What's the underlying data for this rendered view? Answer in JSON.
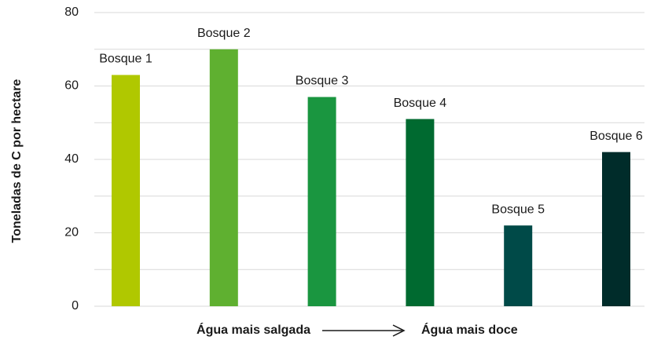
{
  "chart_data": {
    "type": "bar",
    "y_label": "Toneladas de C por hectare",
    "x_labels": [
      "Água mais salgada",
      "Água mais doce"
    ],
    "categories": [
      "Bosque 1",
      "Bosque 2",
      "Bosque 3",
      "Bosque 4",
      "Bosque 5",
      "Bosque 6"
    ],
    "values": [
      63,
      70,
      57,
      51,
      22,
      42
    ],
    "colors": [
      "#b0c800",
      "#5fb030",
      "#1a9640",
      "#006a30",
      "#004a48",
      "#002c2a"
    ],
    "ylim": [
      0,
      80
    ],
    "yticks": [
      0,
      20,
      40,
      60,
      80
    ],
    "minor_yticks": [
      10,
      30,
      50,
      70
    ],
    "grid": true
  }
}
